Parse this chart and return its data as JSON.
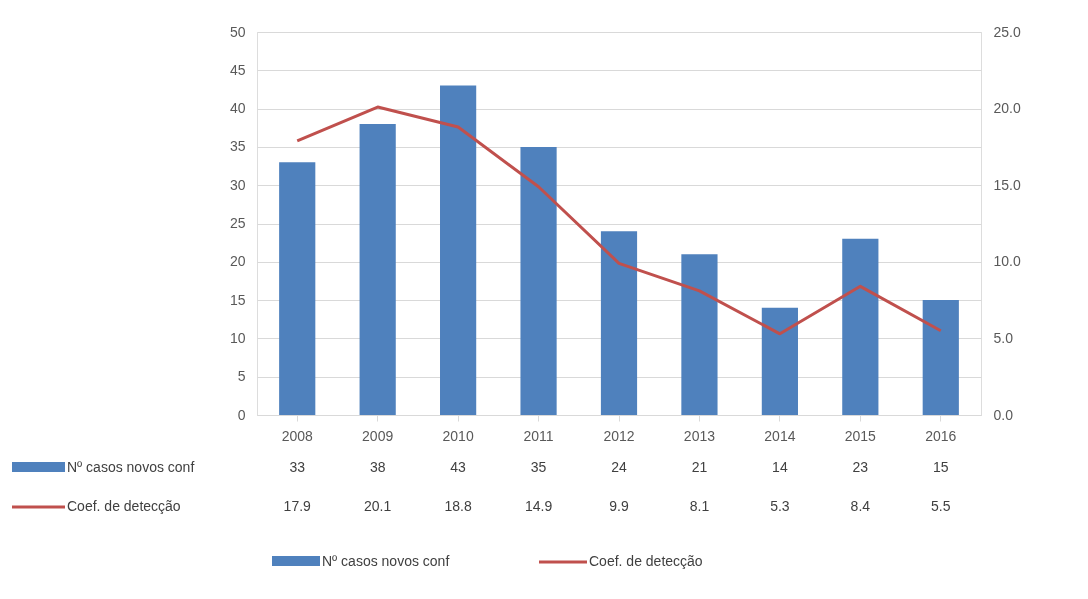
{
  "chart_data": {
    "type": "bar",
    "categories": [
      "2008",
      "2009",
      "2010",
      "2011",
      "2012",
      "2013",
      "2014",
      "2015",
      "2016"
    ],
    "series": [
      {
        "name": "Nº casos novos conf",
        "color": "#4f81bd",
        "values": [
          33,
          38,
          43,
          35,
          24,
          21,
          14,
          23,
          15
        ]
      },
      {
        "name": "Coef. de detecção",
        "color": "#c0504d",
        "type": "line",
        "axis": "y2",
        "values": [
          17.9,
          20.1,
          18.8,
          14.9,
          9.9,
          8.1,
          5.3,
          8.4,
          5.5
        ]
      }
    ],
    "ylim": [
      0,
      50
    ],
    "yticks": [
      0,
      5,
      10,
      15,
      20,
      25,
      30,
      35,
      40,
      45,
      50
    ],
    "y2lim": [
      0,
      25
    ],
    "y2ticks": [
      {
        "value": 0,
        "label": "0.0"
      },
      {
        "value": 5,
        "label": "5.0"
      },
      {
        "value": 10,
        "label": "10.0"
      },
      {
        "value": 15,
        "label": "15.0"
      },
      {
        "value": 20,
        "label": "20.0"
      },
      {
        "value": 25,
        "label": "25.0"
      }
    ],
    "grid": "y",
    "legend": "bottom",
    "data_labels": true,
    "marker": "none",
    "line_style": "solid"
  }
}
